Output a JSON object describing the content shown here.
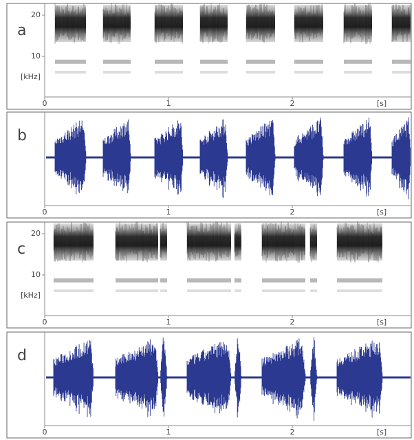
{
  "panels": [
    {
      "label": "a",
      "kind": "spectrogram",
      "yticks": [
        "20",
        "10"
      ],
      "y_unit": "[kHz]",
      "xticks": [
        "0",
        "1",
        "2"
      ],
      "x_unit": "[s]"
    },
    {
      "label": "b",
      "kind": "waveform",
      "xticks": [
        "0",
        "1",
        "2"
      ],
      "x_unit": "[s]"
    },
    {
      "label": "c",
      "kind": "spectrogram",
      "yticks": [
        "20",
        "10"
      ],
      "y_unit": "[kHz]",
      "xticks": [
        "0",
        "1",
        "2"
      ],
      "x_unit": "[s]"
    },
    {
      "label": "d",
      "kind": "waveform",
      "xticks": [
        "0",
        "1",
        "2"
      ],
      "x_unit": "[s]"
    }
  ]
}
